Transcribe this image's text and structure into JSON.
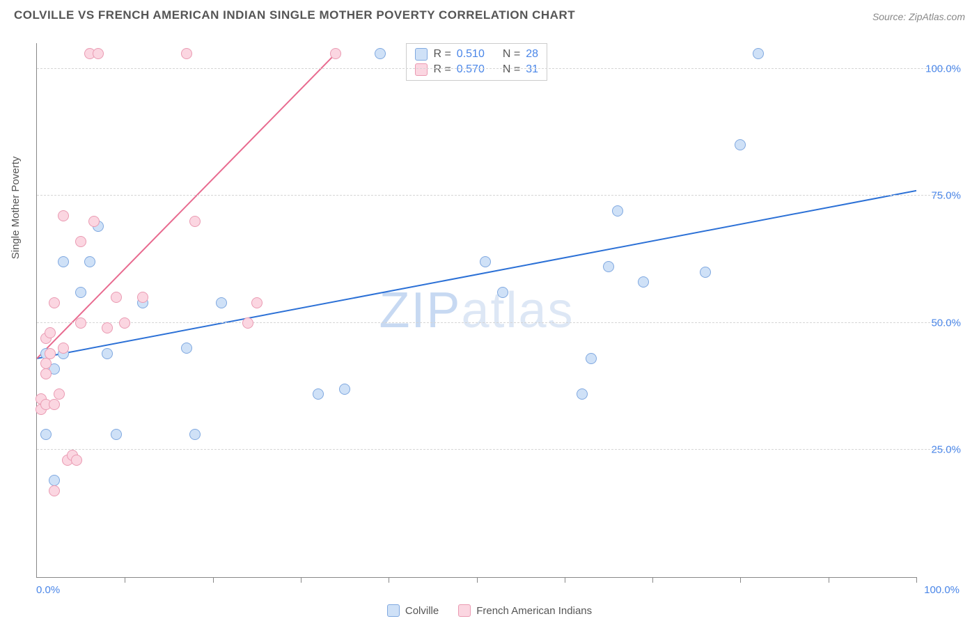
{
  "header": {
    "title": "COLVILLE VS FRENCH AMERICAN INDIAN SINGLE MOTHER POVERTY CORRELATION CHART",
    "source_prefix": "Source: ",
    "source_name": "ZipAtlas.com"
  },
  "chart": {
    "type": "scatter",
    "ylabel": "Single Mother Poverty",
    "xlim": [
      0,
      100
    ],
    "ylim": [
      0,
      105
    ],
    "x_axis_min_label": "0.0%",
    "x_axis_max_label": "100.0%",
    "y_ticks": [
      {
        "value": 25,
        "label": "25.0%"
      },
      {
        "value": 50,
        "label": "50.0%"
      },
      {
        "value": 75,
        "label": "75.0%"
      },
      {
        "value": 100,
        "label": "100.0%"
      }
    ],
    "x_tick_positions": [
      0,
      10,
      20,
      30,
      40,
      50,
      60,
      70,
      80,
      90,
      100
    ],
    "grid_color": "#d5d5d5",
    "axis_color": "#888888",
    "background_color": "#ffffff",
    "watermark": "ZIPatlas",
    "series": [
      {
        "id": "colville",
        "label": "Colville",
        "point_fill": "#cfe1f7",
        "point_stroke": "#7fa8e0",
        "line_color": "#2b70d6",
        "R": "0.510",
        "N": "28",
        "trend": {
          "x1": 0,
          "y1": 43,
          "x2": 100,
          "y2": 76
        },
        "points": [
          {
            "x": 1,
            "y": 44
          },
          {
            "x": 1,
            "y": 28
          },
          {
            "x": 2,
            "y": 41
          },
          {
            "x": 2,
            "y": 19
          },
          {
            "x": 3,
            "y": 62
          },
          {
            "x": 3,
            "y": 44
          },
          {
            "x": 5,
            "y": 56
          },
          {
            "x": 6,
            "y": 62
          },
          {
            "x": 7,
            "y": 69
          },
          {
            "x": 8,
            "y": 44
          },
          {
            "x": 9,
            "y": 28
          },
          {
            "x": 12,
            "y": 54
          },
          {
            "x": 17,
            "y": 45
          },
          {
            "x": 18,
            "y": 28
          },
          {
            "x": 21,
            "y": 54
          },
          {
            "x": 32,
            "y": 36
          },
          {
            "x": 35,
            "y": 37
          },
          {
            "x": 39,
            "y": 103
          },
          {
            "x": 51,
            "y": 62
          },
          {
            "x": 53,
            "y": 56
          },
          {
            "x": 62,
            "y": 36
          },
          {
            "x": 63,
            "y": 43
          },
          {
            "x": 65,
            "y": 61
          },
          {
            "x": 66,
            "y": 72
          },
          {
            "x": 69,
            "y": 58
          },
          {
            "x": 76,
            "y": 60
          },
          {
            "x": 80,
            "y": 85
          },
          {
            "x": 82,
            "y": 103
          }
        ]
      },
      {
        "id": "french",
        "label": "French American Indians",
        "point_fill": "#fbd6e1",
        "point_stroke": "#ea9ab2",
        "line_color": "#e86a8f",
        "R": "0.570",
        "N": "31",
        "trend": {
          "x1": 0,
          "y1": 43,
          "x2": 34,
          "y2": 103
        },
        "points": [
          {
            "x": 0.5,
            "y": 35
          },
          {
            "x": 0.5,
            "y": 33
          },
          {
            "x": 1,
            "y": 42
          },
          {
            "x": 1,
            "y": 40
          },
          {
            "x": 1,
            "y": 47
          },
          {
            "x": 1,
            "y": 34
          },
          {
            "x": 1.5,
            "y": 44
          },
          {
            "x": 1.5,
            "y": 48
          },
          {
            "x": 2,
            "y": 34
          },
          {
            "x": 2,
            "y": 17
          },
          {
            "x": 2,
            "y": 54
          },
          {
            "x": 2.5,
            "y": 36
          },
          {
            "x": 3,
            "y": 45
          },
          {
            "x": 3,
            "y": 71
          },
          {
            "x": 3.5,
            "y": 23
          },
          {
            "x": 4,
            "y": 24
          },
          {
            "x": 4.5,
            "y": 23
          },
          {
            "x": 5,
            "y": 66
          },
          {
            "x": 5,
            "y": 50
          },
          {
            "x": 6,
            "y": 103
          },
          {
            "x": 6.5,
            "y": 70
          },
          {
            "x": 7,
            "y": 103
          },
          {
            "x": 8,
            "y": 49
          },
          {
            "x": 9,
            "y": 55
          },
          {
            "x": 10,
            "y": 50
          },
          {
            "x": 12,
            "y": 55
          },
          {
            "x": 17,
            "y": 103
          },
          {
            "x": 18,
            "y": 70
          },
          {
            "x": 24,
            "y": 50
          },
          {
            "x": 25,
            "y": 54
          },
          {
            "x": 34,
            "y": 103
          }
        ]
      }
    ]
  },
  "legend_labels": {
    "r_prefix": "R = ",
    "n_prefix": "N = "
  }
}
